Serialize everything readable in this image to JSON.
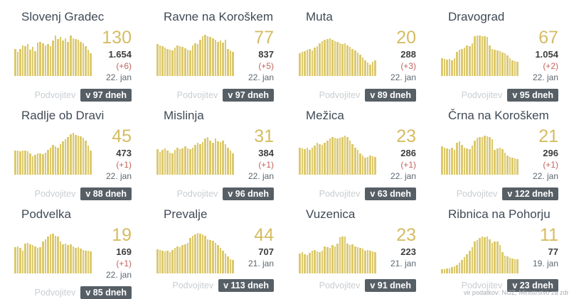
{
  "labels": {
    "doubling": "Podvojitev"
  },
  "footer": {
    "source": "vir podatkov: NIJZ, Ministrstvo za zdravje"
  },
  "colors": {
    "bar": "#dcc96d",
    "big_number": "#d5bc62",
    "change": "#c4625d",
    "total": "#3d3d3d",
    "date": "#5c6770",
    "title": "#3f4a56",
    "doubling_label": "#c9ced2",
    "badge_bg": "#575f66",
    "badge_text": "#ffffff"
  },
  "cards": [
    {
      "title": "Slovenj Gradec",
      "active": "130",
      "total": "1.654",
      "change": "(+6)",
      "date": "22. jan",
      "doubling_badge": "v 97 dneh"
    },
    {
      "title": "Ravne na Koroškem",
      "active": "77",
      "total": "837",
      "change": "(+5)",
      "date": "22. jan",
      "doubling_badge": "v 97 dneh"
    },
    {
      "title": "Muta",
      "active": "20",
      "total": "288",
      "change": "(+3)",
      "date": "22. jan",
      "doubling_badge": "v 89 dneh"
    },
    {
      "title": "Dravograd",
      "active": "67",
      "total": "1.054",
      "change": "(+2)",
      "date": "22. jan",
      "doubling_badge": "v 95 dneh"
    },
    {
      "title": "Radlje ob Dravi",
      "active": "45",
      "total": "473",
      "change": "(+1)",
      "date": "22. jan",
      "doubling_badge": "v 88 dneh"
    },
    {
      "title": "Mislinja",
      "active": "31",
      "total": "384",
      "change": "(+1)",
      "date": "22. jan",
      "doubling_badge": "v 96 dneh"
    },
    {
      "title": "Mežica",
      "active": "23",
      "total": "286",
      "change": "(+1)",
      "date": "22. jan",
      "doubling_badge": "v 63 dneh"
    },
    {
      "title": "Črna na Koroškem",
      "active": "21",
      "total": "296",
      "change": "(+1)",
      "date": "22. jan",
      "doubling_badge": "v 122 dneh"
    },
    {
      "title": "Podvelka",
      "active": "19",
      "total": "169",
      "change": "(+1)",
      "date": "22. jan",
      "doubling_badge": "v 85 dneh"
    },
    {
      "title": "Prevalje",
      "active": "44",
      "total": "707",
      "change": "",
      "date": "21. jan",
      "doubling_badge": "v 113 dneh"
    },
    {
      "title": "Vuzenica",
      "active": "23",
      "total": "223",
      "change": "",
      "date": "21. jan",
      "doubling_badge": "v 91 dneh"
    },
    {
      "title": "Ribnica na Pohorju",
      "active": "11",
      "total": "77",
      "change": "",
      "date": "19. jan",
      "doubling_badge": "v 23 dneh"
    }
  ],
  "chart_data": [
    {
      "type": "bar",
      "title": "Slovenj Gradec",
      "ylabel": "relative bar height (%)",
      "ylim": [
        0,
        100
      ],
      "values": [
        62,
        55,
        62,
        70,
        67,
        72,
        60,
        66,
        56,
        76,
        78,
        75,
        70,
        72,
        68,
        80,
        92,
        84,
        88,
        80,
        86,
        78,
        92,
        86,
        84,
        82,
        78,
        74,
        68,
        60,
        52
      ]
    },
    {
      "type": "bar",
      "title": "Ravne na Koroškem",
      "ylabel": "relative bar height (%)",
      "ylim": [
        0,
        100
      ],
      "values": [
        72,
        70,
        68,
        64,
        62,
        60,
        58,
        64,
        70,
        68,
        66,
        63,
        60,
        58,
        70,
        74,
        72,
        82,
        90,
        93,
        91,
        88,
        85,
        82,
        78,
        80,
        76,
        83,
        62,
        58,
        55
      ]
    },
    {
      "type": "bar",
      "title": "Muta",
      "ylabel": "relative bar height (%)",
      "ylim": [
        0,
        100
      ],
      "values": [
        52,
        55,
        57,
        60,
        62,
        58,
        64,
        68,
        75,
        79,
        82,
        84,
        86,
        83,
        79,
        77,
        75,
        73,
        74,
        70,
        66,
        62,
        58,
        54,
        48,
        42,
        36,
        30,
        26,
        33,
        35
      ]
    },
    {
      "type": "bar",
      "title": "Dravograd",
      "ylabel": "relative bar height (%)",
      "ylim": [
        0,
        100
      ],
      "values": [
        40,
        38,
        37,
        38,
        35,
        41,
        55,
        60,
        62,
        65,
        70,
        68,
        75,
        90,
        92,
        92,
        91,
        90,
        88,
        70,
        62,
        60,
        58,
        56,
        54,
        52,
        46,
        40,
        36,
        34,
        33
      ]
    },
    {
      "type": "bar",
      "title": "Radlje ob Dravi",
      "ylabel": "relative bar height (%)",
      "ylim": [
        0,
        100
      ],
      "values": [
        55,
        55,
        54,
        55,
        55,
        54,
        48,
        42,
        45,
        48,
        48,
        47,
        50,
        56,
        62,
        68,
        64,
        62,
        70,
        76,
        80,
        86,
        92,
        95,
        90,
        88,
        87,
        84,
        78,
        66,
        55
      ]
    },
    {
      "type": "bar",
      "title": "Mislinja",
      "ylabel": "relative bar height (%)",
      "ylim": [
        0,
        100
      ],
      "values": [
        58,
        52,
        56,
        60,
        55,
        50,
        48,
        56,
        62,
        58,
        60,
        64,
        60,
        58,
        62,
        68,
        72,
        70,
        75,
        82,
        86,
        78,
        72,
        82,
        76,
        74,
        78,
        70,
        62,
        55,
        48
      ]
    },
    {
      "type": "bar",
      "title": "Mežica",
      "ylabel": "relative bar height (%)",
      "ylim": [
        0,
        100
      ],
      "values": [
        62,
        60,
        58,
        61,
        56,
        62,
        66,
        72,
        70,
        68,
        72,
        78,
        82,
        85,
        84,
        82,
        84,
        86,
        88,
        86,
        78,
        70,
        62,
        56,
        49,
        43,
        39,
        41,
        43,
        42,
        41
      ]
    },
    {
      "type": "bar",
      "title": "Črna na Koroškem",
      "ylabel": "relative bar height (%)",
      "ylim": [
        0,
        100
      ],
      "values": [
        65,
        62,
        60,
        58,
        61,
        56,
        72,
        76,
        68,
        62,
        60,
        58,
        66,
        78,
        84,
        86,
        86,
        88,
        87,
        86,
        80,
        56,
        60,
        62,
        58,
        50,
        44,
        40,
        38,
        37,
        36
      ]
    },
    {
      "type": "bar",
      "title": "Podvelka",
      "ylabel": "relative bar height (%)",
      "ylim": [
        0,
        100
      ],
      "values": [
        60,
        62,
        58,
        52,
        68,
        70,
        66,
        64,
        62,
        58,
        60,
        72,
        78,
        84,
        88,
        90,
        86,
        84,
        72,
        66,
        68,
        64,
        66,
        62,
        58,
        60,
        56,
        54,
        52,
        51,
        50
      ]
    },
    {
      "type": "bar",
      "title": "Prevalje",
      "ylabel": "relative bar height (%)",
      "ylim": [
        0,
        100
      ],
      "values": [
        55,
        54,
        52,
        50,
        52,
        48,
        54,
        58,
        62,
        60,
        64,
        66,
        70,
        80,
        85,
        88,
        92,
        90,
        88,
        86,
        78,
        76,
        74,
        70,
        64,
        58,
        52,
        45,
        38,
        33,
        30
      ]
    },
    {
      "type": "bar",
      "title": "Vuzenica",
      "ylabel": "relative bar height (%)",
      "ylim": [
        0,
        100
      ],
      "values": [
        45,
        48,
        44,
        42,
        46,
        52,
        54,
        50,
        48,
        52,
        62,
        60,
        58,
        64,
        62,
        68,
        82,
        84,
        84,
        68,
        64,
        66,
        62,
        60,
        58,
        56,
        52,
        54,
        52,
        50,
        48
      ]
    },
    {
      "type": "bar",
      "title": "Ribnica na Pohorju",
      "ylabel": "relative bar height (%)",
      "ylim": [
        0,
        100
      ],
      "values": [
        10,
        10,
        12,
        12,
        14,
        16,
        20,
        25,
        30,
        37,
        44,
        52,
        60,
        72,
        76,
        80,
        84,
        82,
        84,
        78,
        70,
        72,
        72,
        64,
        48,
        40,
        38,
        36,
        34,
        33,
        32
      ]
    }
  ]
}
